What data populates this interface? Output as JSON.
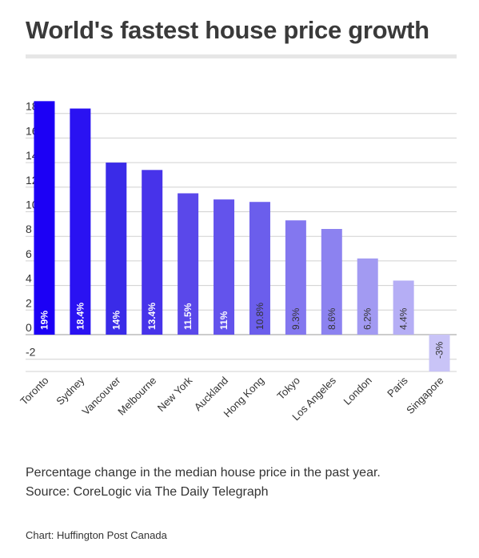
{
  "title": "World's fastest house price growth",
  "chart_data": {
    "type": "bar",
    "categories": [
      "Toronto",
      "Sydney",
      "Vancouver",
      "Melbourne",
      "New York",
      "Auckland",
      "Hong Kong",
      "Tokyo",
      "Los Angeles",
      "London",
      "Paris",
      "Singapore"
    ],
    "values": [
      19,
      18.4,
      14,
      13.4,
      11.5,
      11,
      10.8,
      9.3,
      8.6,
      6.2,
      4.4,
      -3
    ],
    "data_labels": [
      "19%",
      "18.4%",
      "14%",
      "13.4%",
      "11.5%",
      "11%",
      "10.8%",
      "9.3%",
      "8.6%",
      "6.2%",
      "4.4%",
      "-3%"
    ],
    "y_ticks": [
      -2,
      0,
      2,
      4,
      6,
      8,
      10,
      12,
      14,
      16,
      18
    ],
    "ylim": [
      -3,
      19
    ],
    "grid": true,
    "colors": [
      "#1c00f5",
      "#2a12f2",
      "#3a2be8",
      "#4733ea",
      "#5a48ea",
      "#6353ec",
      "#6b5eec",
      "#8377ef",
      "#8c82f0",
      "#a29af2",
      "#b5aef5",
      "#c9c4f7"
    ]
  },
  "caption_line1": "Percentage change in the median house price in the past year.",
  "caption_line2": "Source: CoreLogic via The Daily Telegraph",
  "credit": "Chart: Huffington Post Canada"
}
